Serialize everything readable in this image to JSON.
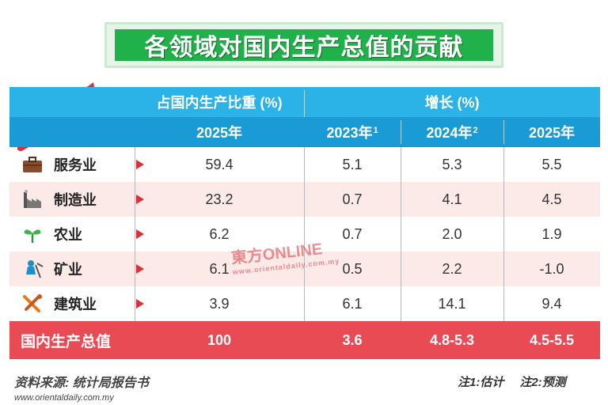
{
  "title": "各领域对国内生产总值的贡献",
  "header": {
    "share_group": "占国内生产比重 (%)",
    "growth_group": "增长 (%)",
    "share_year": "2025年",
    "years": [
      {
        "label": "2023年",
        "note": "1"
      },
      {
        "label": "2024年",
        "note": "2"
      },
      {
        "label": "2025年",
        "note": ""
      }
    ]
  },
  "rows": [
    {
      "icon": "briefcase-icon",
      "label": "服务业",
      "share": "59.4",
      "g2023": "5.1",
      "g2024": "5.3",
      "g2025": "5.5"
    },
    {
      "icon": "factory-icon",
      "label": "制造业",
      "share": "23.2",
      "g2023": "0.7",
      "g2024": "4.1",
      "g2025": "4.5"
    },
    {
      "icon": "sprout-icon",
      "label": "农业",
      "share": "6.2",
      "g2023": "0.7",
      "g2024": "2.0",
      "g2025": "1.9"
    },
    {
      "icon": "miner-icon",
      "label": "矿业",
      "share": "6.1",
      "g2023": "0.5",
      "g2024": "2.2",
      "g2025": "-1.0"
    },
    {
      "icon": "tools-icon",
      "label": "建筑业",
      "share": "3.9",
      "g2023": "6.1",
      "g2024": "14.1",
      "g2025": "9.4"
    }
  ],
  "total": {
    "label": "国内生产总值",
    "share": "100",
    "g2023": "3.6",
    "g2024": "4.8-5.3",
    "g2025": "4.5-5.5"
  },
  "footer": {
    "source": "资料来源: 统计局报告书",
    "url": "www.orientaldaily.com.my",
    "note1": "注1:估计",
    "note2": "注2:预测"
  },
  "watermark": {
    "text": "東方ONLINE",
    "sub": "www.orientaldaily.com.my"
  },
  "colors": {
    "title_green": "#21b14a",
    "header_blue": "#2bb2e6",
    "total_red": "#e94b55"
  }
}
